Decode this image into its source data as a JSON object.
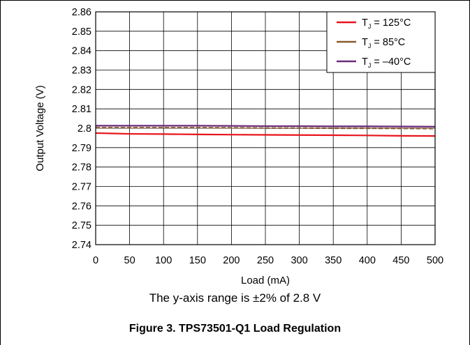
{
  "chart_data": {
    "type": "line",
    "xlabel": "Load (mA)",
    "ylabel": "Output Voltage (V)",
    "xlim": [
      0,
      500
    ],
    "ylim": [
      2.74,
      2.86
    ],
    "x_ticks": [
      "0",
      "50",
      "100",
      "150",
      "200",
      "250",
      "300",
      "350",
      "400",
      "450",
      "500"
    ],
    "y_ticks": [
      "2.74",
      "2.75",
      "2.76",
      "2.77",
      "2.78",
      "2.79",
      "2.8",
      "2.81",
      "2.82",
      "2.83",
      "2.84",
      "2.85",
      "2.86"
    ],
    "grid": true,
    "legend_position": "top-right",
    "series": [
      {
        "name": "T_J = 125°C",
        "label_main": "T",
        "label_sub": "J",
        "label_rest": " = 125°C",
        "color": "#e8141b",
        "style": "solid",
        "x": [
          0,
          25,
          50,
          100,
          150,
          200,
          250,
          300,
          350,
          400,
          450,
          500
        ],
        "y": [
          2.7975,
          2.7973,
          2.7971,
          2.797,
          2.7968,
          2.7967,
          2.7966,
          2.7965,
          2.7964,
          2.7963,
          2.7961,
          2.796
        ]
      },
      {
        "name": "T_J = 85°C",
        "label_main": "T",
        "label_sub": "J",
        "label_rest": " = 85°C",
        "color": "#8b5a2b",
        "style": "dashed",
        "x": [
          0,
          50,
          100,
          150,
          200,
          250,
          300,
          350,
          400,
          450,
          500
        ],
        "y": [
          2.8003,
          2.8003,
          2.8003,
          2.8003,
          2.8002,
          2.8001,
          2.8001,
          2.8,
          2.8,
          2.7999,
          2.7998
        ]
      },
      {
        "name": "T_J = –40°C",
        "label_main": "T",
        "label_sub": "J",
        "label_rest": " = –40°C",
        "color": "#6a2a7a",
        "style": "solid",
        "x": [
          0,
          50,
          100,
          150,
          200,
          250,
          300,
          350,
          400,
          450,
          500
        ],
        "y": [
          2.8013,
          2.8013,
          2.8013,
          2.8013,
          2.8012,
          2.8011,
          2.8011,
          2.801,
          2.801,
          2.8009,
          2.8008
        ]
      }
    ]
  },
  "note": "The y-axis range is ±2% of 2.8 V",
  "figure_title": "Figure 3. TPS73501-Q1 Load Regulation"
}
